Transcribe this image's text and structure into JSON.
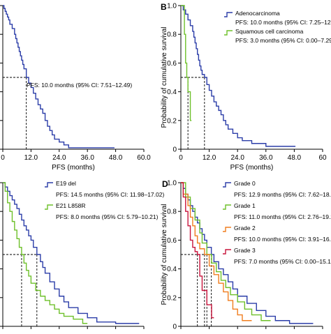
{
  "chart_data": [
    {
      "panel": "A",
      "type": "line",
      "panel_label": "",
      "xlabel": "PFS (months)",
      "ylabel": "",
      "xlim": [
        0,
        60
      ],
      "ylim": [
        0,
        1
      ],
      "xticks": [
        "0",
        "12.0",
        "24.0",
        "36.0",
        "48.0",
        "60.0"
      ],
      "yticks": [],
      "grid": false,
      "annotation": "PFS: 10.0 months (95% CI: 7.51–12.49)",
      "median_lines": [
        10.0
      ],
      "series": [
        {
          "name": "",
          "color": "#2b3da8",
          "x": [
            0,
            0.5,
            1,
            1.5,
            2,
            2.5,
            3,
            4,
            5,
            5.5,
            6,
            6.5,
            7,
            7.5,
            8,
            8.5,
            9,
            10,
            11,
            12,
            13,
            14,
            15,
            16,
            17,
            18,
            19,
            20,
            21,
            22,
            24,
            26,
            28,
            47.5
          ],
          "y": [
            1.0,
            0.98,
            0.96,
            0.94,
            0.92,
            0.9,
            0.87,
            0.84,
            0.8,
            0.77,
            0.74,
            0.71,
            0.68,
            0.65,
            0.62,
            0.59,
            0.56,
            0.5,
            0.46,
            0.43,
            0.39,
            0.35,
            0.31,
            0.28,
            0.25,
            0.2,
            0.16,
            0.13,
            0.1,
            0.07,
            0.05,
            0.03,
            0.01,
            0.01
          ]
        }
      ]
    },
    {
      "panel": "B",
      "type": "line",
      "panel_label": "B",
      "xlabel": "PFS (months)",
      "ylabel": "Probability of cumulative survival",
      "xlim": [
        0,
        60
      ],
      "ylim": [
        0,
        1
      ],
      "xticks": [
        "0",
        "12.0",
        "24.0",
        "36.0",
        "48.0",
        "60"
      ],
      "yticks": [
        "0",
        "0.2",
        "0.4",
        "0.6",
        "0.8",
        "1.0"
      ],
      "grid": false,
      "median_lines": [
        3.0,
        10.0
      ],
      "series": [
        {
          "name": "Adenocarcinoma",
          "annotation": "PFS: 10.0 months (95% CI: 7.25–12.75)",
          "color": "#2b3da8",
          "x": [
            0,
            1,
            2,
            3,
            4,
            5,
            5.5,
            6,
            6.5,
            7,
            7.5,
            8,
            8.5,
            9,
            10,
            11,
            12,
            13,
            14,
            15,
            16,
            17,
            18,
            19,
            20,
            22,
            24,
            26,
            30,
            36,
            48.5
          ],
          "y": [
            1.0,
            0.97,
            0.94,
            0.9,
            0.86,
            0.82,
            0.78,
            0.74,
            0.7,
            0.66,
            0.62,
            0.58,
            0.55,
            0.52,
            0.5,
            0.45,
            0.41,
            0.37,
            0.33,
            0.3,
            0.27,
            0.24,
            0.2,
            0.17,
            0.14,
            0.11,
            0.08,
            0.06,
            0.04,
            0.02,
            0.02
          ]
        },
        {
          "name": "Squamous cell carcinoma",
          "annotation": "PFS: 3.0 months (95% CI: 0.00–7.29)",
          "color": "#6ec02a",
          "x": [
            0,
            1.5,
            2,
            2.5,
            3,
            4,
            4.5
          ],
          "y": [
            1.0,
            0.8,
            0.6,
            0.5,
            0.4,
            0.2,
            0.2
          ]
        }
      ]
    },
    {
      "panel": "C",
      "type": "line",
      "panel_label": "",
      "xlabel": "",
      "ylabel": "",
      "xlim": [
        0,
        60
      ],
      "ylim": [
        0,
        1
      ],
      "xticks": [],
      "yticks": [],
      "grid": false,
      "median_lines": [
        8.0,
        14.5
      ],
      "series": [
        {
          "name": "E19 del",
          "annotation": "PFS: 14.5 months (95% CI: 11.98–17.02)",
          "color": "#2b3da8",
          "x": [
            0,
            1,
            2,
            3,
            4,
            5,
            6,
            7,
            8,
            9,
            10,
            11,
            12,
            13,
            14.5,
            16,
            17,
            18,
            20,
            22,
            24,
            26,
            28,
            32,
            36,
            40,
            48,
            58
          ],
          "y": [
            1.0,
            0.97,
            0.94,
            0.91,
            0.88,
            0.85,
            0.82,
            0.78,
            0.74,
            0.7,
            0.67,
            0.63,
            0.6,
            0.55,
            0.5,
            0.45,
            0.41,
            0.37,
            0.31,
            0.26,
            0.21,
            0.17,
            0.13,
            0.09,
            0.06,
            0.03,
            0.02,
            0.02
          ]
        },
        {
          "name": "E21 L858R",
          "annotation": "PFS: 8.0 months (95% CI: 5.79–10.21)",
          "color": "#6ec02a",
          "x": [
            0,
            1,
            2,
            3,
            4,
            5,
            6,
            7,
            8,
            9,
            10,
            11,
            12,
            14,
            16,
            18,
            20,
            22,
            24,
            26,
            30,
            34,
            36
          ],
          "y": [
            1.0,
            0.94,
            0.86,
            0.8,
            0.73,
            0.67,
            0.61,
            0.55,
            0.5,
            0.44,
            0.39,
            0.35,
            0.3,
            0.25,
            0.21,
            0.18,
            0.15,
            0.12,
            0.09,
            0.07,
            0.05,
            0.02,
            0.02
          ]
        }
      ]
    },
    {
      "panel": "D",
      "type": "line",
      "panel_label": "D",
      "xlabel": "",
      "ylabel": "Probability of cumulative survival",
      "xlim": [
        0,
        60
      ],
      "ylim": [
        0,
        1
      ],
      "xticks": [],
      "yticks": [
        "0",
        "0.2",
        "0.4",
        "0.6",
        "0.8",
        "1.0"
      ],
      "grid": false,
      "median_lines": [
        7.0,
        10.0,
        11.0,
        12.9
      ],
      "series": [
        {
          "name": "Grade 0",
          "annotation": "PFS: 12.9 months (95% CI: 7.62–18.18)",
          "color": "#2b3da8",
          "x": [
            0,
            1,
            2,
            3,
            4,
            5,
            6,
            7,
            8,
            9,
            10,
            11,
            12.9,
            14,
            16,
            18,
            20,
            22,
            24,
            28,
            32,
            36,
            40,
            46,
            56
          ],
          "y": [
            1.0,
            0.96,
            0.92,
            0.88,
            0.84,
            0.8,
            0.76,
            0.72,
            0.68,
            0.64,
            0.6,
            0.55,
            0.5,
            0.45,
            0.4,
            0.36,
            0.31,
            0.26,
            0.21,
            0.16,
            0.11,
            0.07,
            0.04,
            0.02,
            0.02
          ]
        },
        {
          "name": "Grade 1",
          "annotation": "PFS: 11.0 months (95% CI: 2.76–19.24)",
          "color": "#6ec02a",
          "x": [
            0,
            2,
            4,
            6,
            8,
            9,
            11,
            13,
            15,
            17,
            19,
            21,
            24,
            27,
            30,
            34,
            38
          ],
          "y": [
            1.0,
            0.9,
            0.82,
            0.74,
            0.65,
            0.58,
            0.5,
            0.44,
            0.38,
            0.32,
            0.27,
            0.22,
            0.17,
            0.12,
            0.08,
            0.04,
            0.04
          ]
        },
        {
          "name": "Grade 2",
          "annotation": "PFS: 10.0 months (95% CI: 3.91–16.07)",
          "color": "#f07d1e",
          "x": [
            0,
            1,
            3,
            4,
            5,
            6,
            7,
            8,
            10,
            12,
            14,
            16,
            18,
            20,
            22,
            24,
            26,
            30
          ],
          "y": [
            1.0,
            0.92,
            0.84,
            0.76,
            0.7,
            0.63,
            0.58,
            0.54,
            0.5,
            0.42,
            0.36,
            0.3,
            0.24,
            0.18,
            0.12,
            0.08,
            0.04,
            0.04
          ]
        },
        {
          "name": "Grade 3",
          "annotation": "PFS: 7.0 months (95% CI: 0.00–15.19)",
          "color": "#c8143c",
          "x": [
            0,
            1,
            2,
            3,
            4,
            5,
            6,
            7,
            8,
            9,
            11,
            13,
            14
          ],
          "y": [
            1.0,
            0.9,
            0.8,
            0.7,
            0.6,
            0.55,
            0.52,
            0.5,
            0.35,
            0.25,
            0.15,
            0.06,
            0.06
          ]
        }
      ]
    }
  ]
}
